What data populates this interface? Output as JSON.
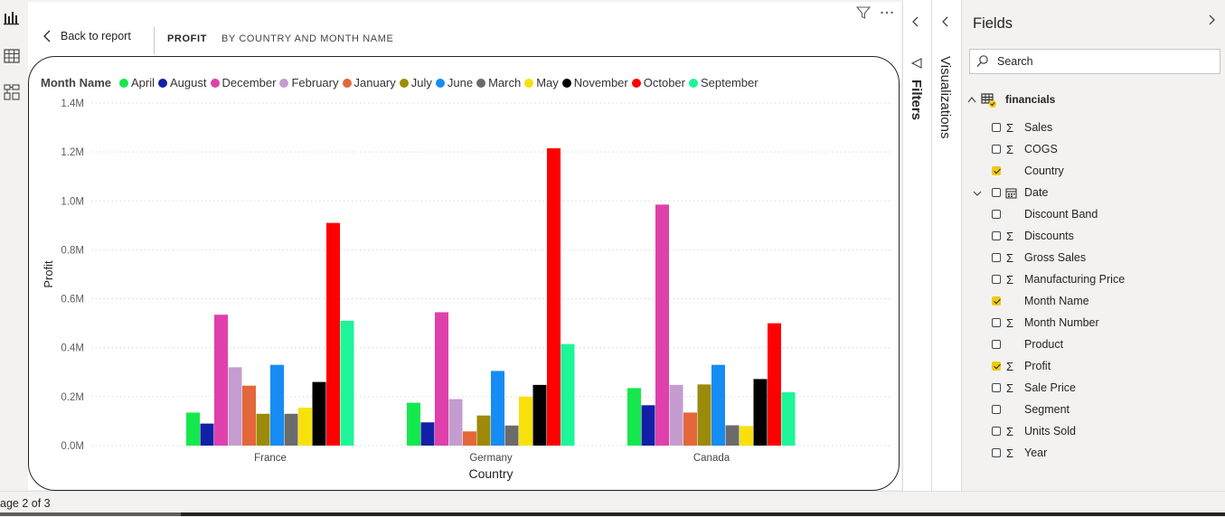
{
  "back_label": "Back to report",
  "tabs": {
    "active": "PROFIT",
    "drill": "BY COUNTRY AND MONTH NAME"
  },
  "legend_title": "Month Name",
  "chart_data": {
    "type": "bar",
    "title": "",
    "xlabel": "Country",
    "ylabel": "Profit",
    "ylim": [
      0,
      1400000
    ],
    "yticks": [
      "0.0M",
      "0.2M",
      "0.4M",
      "0.6M",
      "0.8M",
      "1.0M",
      "1.2M",
      "1.4M"
    ],
    "categories": [
      "France",
      "Germany",
      "Canada"
    ],
    "legend_position": "top-left",
    "grid": true,
    "series": [
      {
        "name": "April",
        "color": "#15e84d",
        "values": [
          135000,
          175000,
          235000
        ]
      },
      {
        "name": "August",
        "color": "#1220a6",
        "values": [
          90000,
          95000,
          165000
        ]
      },
      {
        "name": "December",
        "color": "#e040ab",
        "values": [
          535000,
          545000,
          985000
        ]
      },
      {
        "name": "February",
        "color": "#c49ccf",
        "values": [
          320000,
          190000,
          248000
        ]
      },
      {
        "name": "January",
        "color": "#e3673a",
        "values": [
          245000,
          58000,
          135000
        ]
      },
      {
        "name": "July",
        "color": "#9c8a0b",
        "values": [
          130000,
          123000,
          250000
        ]
      },
      {
        "name": "June",
        "color": "#168cf5",
        "values": [
          330000,
          305000,
          330000
        ]
      },
      {
        "name": "March",
        "color": "#6b6b6b",
        "values": [
          130000,
          82000,
          83000
        ]
      },
      {
        "name": "May",
        "color": "#f8e10b",
        "values": [
          155000,
          200000,
          80000
        ]
      },
      {
        "name": "November",
        "color": "#000000",
        "values": [
          260000,
          248000,
          272000
        ]
      },
      {
        "name": "October",
        "color": "#ff0000",
        "values": [
          910000,
          1215000,
          500000
        ]
      },
      {
        "name": "September",
        "color": "#1df598",
        "values": [
          510000,
          415000,
          218000
        ]
      }
    ]
  },
  "side_panels": {
    "filters": "Filters",
    "visualizations": "Visualizations"
  },
  "fields_pane": {
    "title": "Fields",
    "search_placeholder": "Search",
    "table_name": "financials",
    "fields": [
      {
        "name": "Sales",
        "sigma": true,
        "checked": false
      },
      {
        "name": "COGS",
        "sigma": true,
        "checked": false
      },
      {
        "name": "Country",
        "sigma": false,
        "checked": true
      },
      {
        "name": "Date",
        "sigma": false,
        "checked": false,
        "calendar": true,
        "expandable": true
      },
      {
        "name": "Discount Band",
        "sigma": false,
        "checked": false
      },
      {
        "name": "Discounts",
        "sigma": true,
        "checked": false
      },
      {
        "name": "Gross Sales",
        "sigma": true,
        "checked": false
      },
      {
        "name": "Manufacturing Price",
        "sigma": true,
        "checked": false
      },
      {
        "name": "Month Name",
        "sigma": false,
        "checked": true
      },
      {
        "name": "Month Number",
        "sigma": true,
        "checked": false
      },
      {
        "name": "Product",
        "sigma": false,
        "checked": false
      },
      {
        "name": "Profit",
        "sigma": true,
        "checked": true
      },
      {
        "name": "Sale Price",
        "sigma": true,
        "checked": false
      },
      {
        "name": "Segment",
        "sigma": false,
        "checked": false
      },
      {
        "name": "Units Sold",
        "sigma": true,
        "checked": false
      },
      {
        "name": "Year",
        "sigma": true,
        "checked": false
      }
    ]
  },
  "status": {
    "page_indicator": "age 2 of 3"
  }
}
